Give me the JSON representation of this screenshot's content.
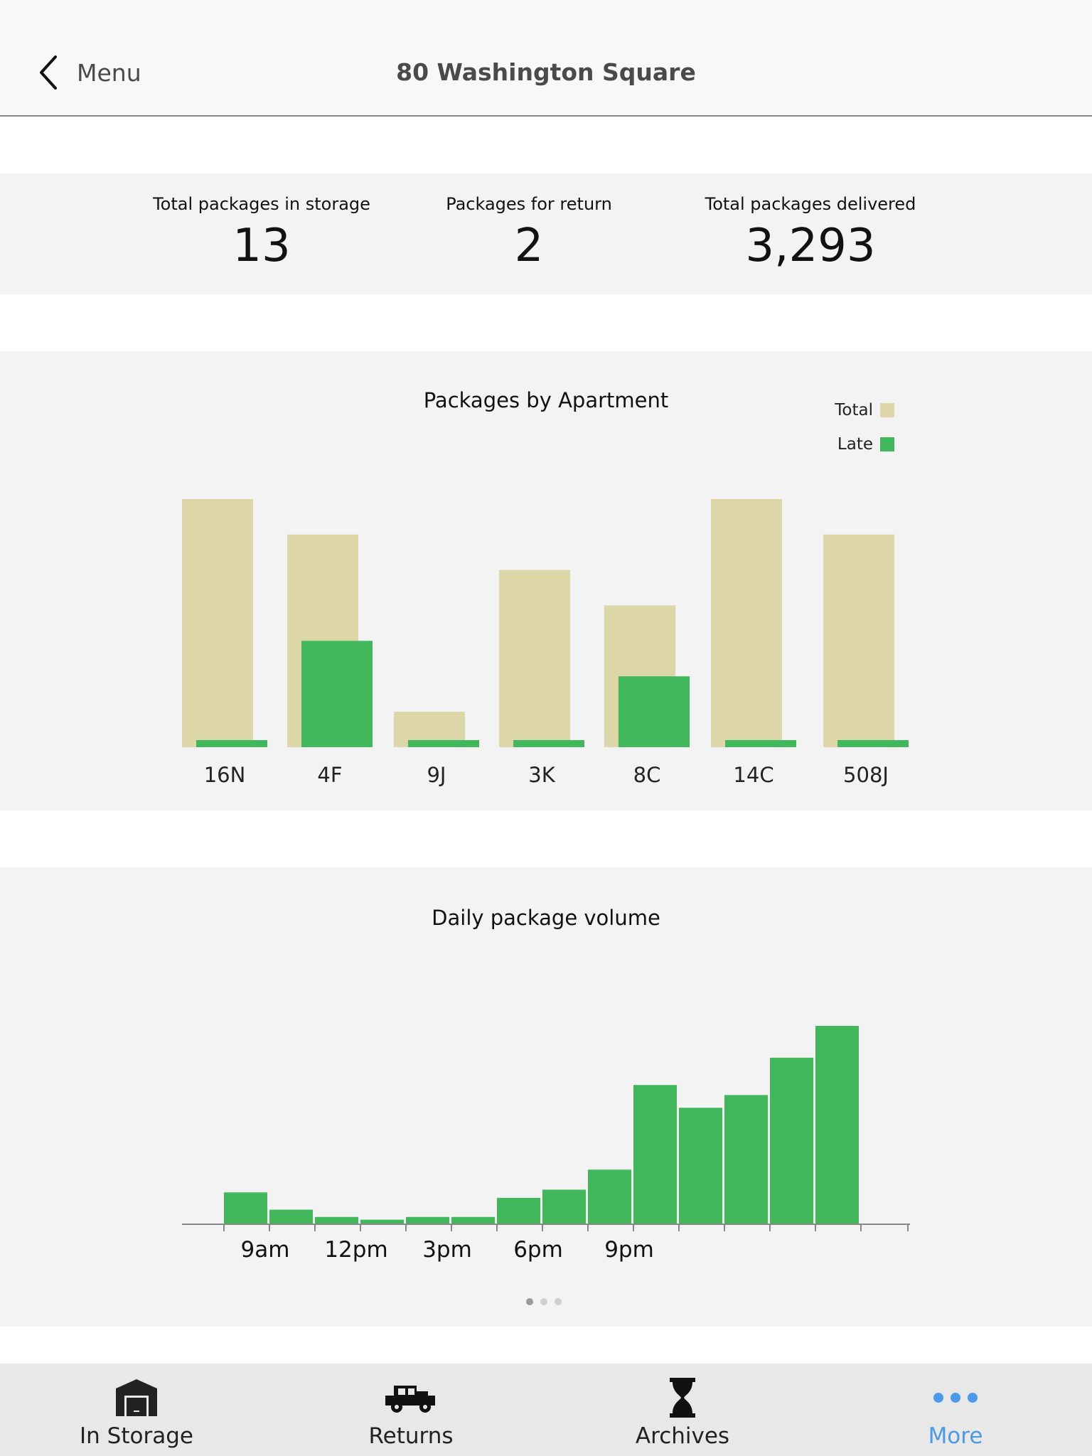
{
  "nav": {
    "back_label": "Menu",
    "title": "80 Washington Square"
  },
  "stats": [
    {
      "label": "Total packages in storage",
      "value": "13"
    },
    {
      "label": "Packages for return",
      "value": "2"
    },
    {
      "label": "Total packages delivered",
      "value": "3,293"
    }
  ],
  "apartment_chart": {
    "title": "Packages by Apartment"
  },
  "volume_chart": {
    "title": "Daily package volume"
  },
  "legend": {
    "total": "Total",
    "late": "Late"
  },
  "colors": {
    "total": "#ddd6a9",
    "late": "#41b85c",
    "accent": "#4a9ae8"
  },
  "chart_data": [
    {
      "type": "bar",
      "title": "Packages by Apartment",
      "categories": [
        "16N",
        "4F",
        "9J",
        "3K",
        "8C",
        "14C",
        "508J"
      ],
      "series": [
        {
          "name": "Total",
          "values": [
            7,
            6,
            1,
            5,
            4,
            7,
            6
          ]
        },
        {
          "name": "Late",
          "values": [
            0.2,
            3,
            0.2,
            0.2,
            2,
            0.2,
            0.2
          ]
        }
      ],
      "ylim": [
        0,
        7
      ],
      "legend": "top-right",
      "grid": false
    },
    {
      "type": "bar",
      "title": "Daily package volume",
      "x_tick_labels": [
        "9am",
        "12pm",
        "3pm",
        "6pm",
        "9pm"
      ],
      "values": [
        35,
        16,
        8,
        5,
        8,
        8,
        29,
        38,
        60,
        153,
        128,
        142,
        183,
        218
      ],
      "grid": false
    }
  ],
  "pager": {
    "pages": 3,
    "current": 0
  },
  "tabs": [
    {
      "label": "In Storage",
      "icon": "garage-icon"
    },
    {
      "label": "Returns",
      "icon": "truck-icon"
    },
    {
      "label": "Archives",
      "icon": "hourglass-icon"
    },
    {
      "label": "More",
      "icon": "more-dots-icon"
    }
  ]
}
